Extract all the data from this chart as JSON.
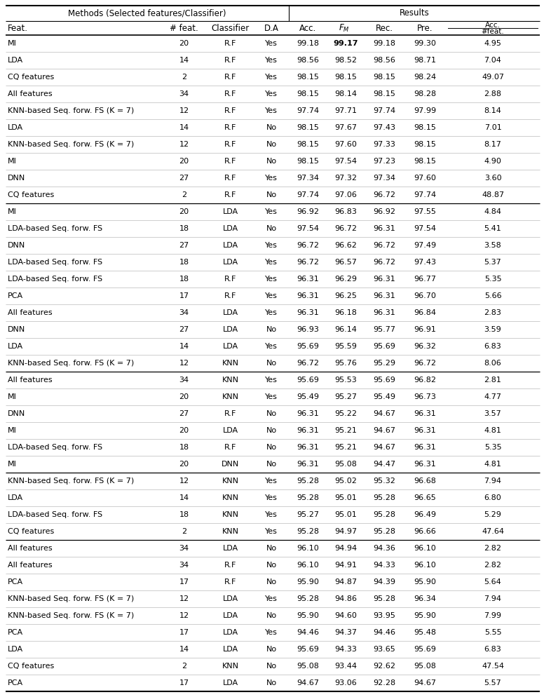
{
  "rows": [
    [
      "MI",
      "20",
      "R.F",
      "Yes",
      "99.18",
      "99.17",
      "99.18",
      "99.30",
      "4.95"
    ],
    [
      "LDA",
      "14",
      "R.F",
      "Yes",
      "98.56",
      "98.52",
      "98.56",
      "98.71",
      "7.04"
    ],
    [
      "CQ features",
      "2",
      "R.F",
      "Yes",
      "98.15",
      "98.15",
      "98.15",
      "98.24",
      "49.07"
    ],
    [
      "All features",
      "34",
      "R.F",
      "Yes",
      "98.15",
      "98.14",
      "98.15",
      "98.28",
      "2.88"
    ],
    [
      "KNN-based Seq. forw. FS (K = 7)",
      "12",
      "R.F",
      "Yes",
      "97.74",
      "97.71",
      "97.74",
      "97.99",
      "8.14"
    ],
    [
      "LDA",
      "14",
      "R.F",
      "No",
      "98.15",
      "97.67",
      "97.43",
      "98.15",
      "7.01"
    ],
    [
      "KNN-based Seq. forw. FS (K = 7)",
      "12",
      "R.F",
      "No",
      "98.15",
      "97.60",
      "97.33",
      "98.15",
      "8.17"
    ],
    [
      "MI",
      "20",
      "R.F",
      "No",
      "98.15",
      "97.54",
      "97.23",
      "98.15",
      "4.90"
    ],
    [
      "DNN",
      "27",
      "R.F",
      "Yes",
      "97.34",
      "97.32",
      "97.34",
      "97.60",
      "3.60"
    ],
    [
      "CQ features",
      "2",
      "R.F",
      "No",
      "97.74",
      "97.06",
      "96.72",
      "97.74",
      "48.87"
    ],
    [
      "MI",
      "20",
      "LDA",
      "Yes",
      "96.92",
      "96.83",
      "96.92",
      "97.55",
      "4.84"
    ],
    [
      "LDA-based Seq. forw. FS",
      "18",
      "LDA",
      "No",
      "97.54",
      "96.72",
      "96.31",
      "97.54",
      "5.41"
    ],
    [
      "DNN",
      "27",
      "LDA",
      "Yes",
      "96.72",
      "96.62",
      "96.72",
      "97.49",
      "3.58"
    ],
    [
      "LDA-based Seq. forw. FS",
      "18",
      "LDA",
      "Yes",
      "96.72",
      "96.57",
      "96.72",
      "97.43",
      "5.37"
    ],
    [
      "LDA-based Seq. forw. FS",
      "18",
      "R.F",
      "Yes",
      "96.31",
      "96.29",
      "96.31",
      "96.77",
      "5.35"
    ],
    [
      "PCA",
      "17",
      "R.F",
      "Yes",
      "96.31",
      "96.25",
      "96.31",
      "96.70",
      "5.66"
    ],
    [
      "All features",
      "34",
      "LDA",
      "Yes",
      "96.31",
      "96.18",
      "96.31",
      "96.84",
      "2.83"
    ],
    [
      "DNN",
      "27",
      "LDA",
      "No",
      "96.93",
      "96.14",
      "95.77",
      "96.91",
      "3.59"
    ],
    [
      "LDA",
      "14",
      "LDA",
      "Yes",
      "95.69",
      "95.59",
      "95.69",
      "96.32",
      "6.83"
    ],
    [
      "KNN-based Seq. forw. FS (K = 7)",
      "12",
      "KNN",
      "No",
      "96.72",
      "95.76",
      "95.29",
      "96.72",
      "8.06"
    ],
    [
      "All features",
      "34",
      "KNN",
      "Yes",
      "95.69",
      "95.53",
      "95.69",
      "96.82",
      "2.81"
    ],
    [
      "MI",
      "20",
      "KNN",
      "Yes",
      "95.49",
      "95.27",
      "95.49",
      "96.73",
      "4.77"
    ],
    [
      "DNN",
      "27",
      "R.F",
      "No",
      "96.31",
      "95.22",
      "94.67",
      "96.31",
      "3.57"
    ],
    [
      "MI",
      "20",
      "LDA",
      "No",
      "96.31",
      "95.21",
      "94.67",
      "96.31",
      "4.81"
    ],
    [
      "LDA-based Seq. forw. FS",
      "18",
      "R.F",
      "No",
      "96.31",
      "95.21",
      "94.67",
      "96.31",
      "5.35"
    ],
    [
      "MI",
      "20",
      "DNN",
      "No",
      "96.31",
      "95.08",
      "94.47",
      "96.31",
      "4.81"
    ],
    [
      "KNN-based Seq. forw. FS (K = 7)",
      "12",
      "KNN",
      "Yes",
      "95.28",
      "95.02",
      "95.32",
      "96.68",
      "7.94"
    ],
    [
      "LDA",
      "14",
      "KNN",
      "Yes",
      "95.28",
      "95.01",
      "95.28",
      "96.65",
      "6.80"
    ],
    [
      "LDA-based Seq. forw. FS",
      "18",
      "KNN",
      "Yes",
      "95.27",
      "95.01",
      "95.28",
      "96.49",
      "5.29"
    ],
    [
      "CQ features",
      "2",
      "KNN",
      "Yes",
      "95.28",
      "94.97",
      "95.28",
      "96.66",
      "47.64"
    ],
    [
      "All features",
      "34",
      "LDA",
      "No",
      "96.10",
      "94.94",
      "94.36",
      "96.10",
      "2.82"
    ],
    [
      "All features",
      "34",
      "R.F",
      "No",
      "96.10",
      "94.91",
      "94.33",
      "96.10",
      "2.82"
    ],
    [
      "PCA",
      "17",
      "R.F",
      "No",
      "95.90",
      "94.87",
      "94.39",
      "95.90",
      "5.64"
    ],
    [
      "KNN-based Seq. forw. FS (K = 7)",
      "12",
      "LDA",
      "Yes",
      "95.28",
      "94.86",
      "95.28",
      "96.34",
      "7.94"
    ],
    [
      "KNN-based Seq. forw. FS (K = 7)",
      "12",
      "LDA",
      "No",
      "95.90",
      "94.60",
      "93.95",
      "95.90",
      "7.99"
    ],
    [
      "PCA",
      "17",
      "LDA",
      "Yes",
      "94.46",
      "94.37",
      "94.46",
      "95.48",
      "5.55"
    ],
    [
      "LDA",
      "14",
      "LDA",
      "No",
      "95.69",
      "94.33",
      "93.65",
      "95.69",
      "6.83"
    ],
    [
      "CQ features",
      "2",
      "KNN",
      "No",
      "95.08",
      "93.44",
      "92.62",
      "95.08",
      "47.54"
    ],
    [
      "PCA",
      "17",
      "LDA",
      "No",
      "94.67",
      "93.06",
      "92.28",
      "94.67",
      "5.57"
    ]
  ],
  "thick_line_rows": [
    0,
    10,
    20,
    26,
    30,
    39
  ],
  "bold_cell": [
    0,
    5
  ],
  "background_color": "#ffffff",
  "fontsize": 8.0,
  "header_fontsize": 8.5
}
